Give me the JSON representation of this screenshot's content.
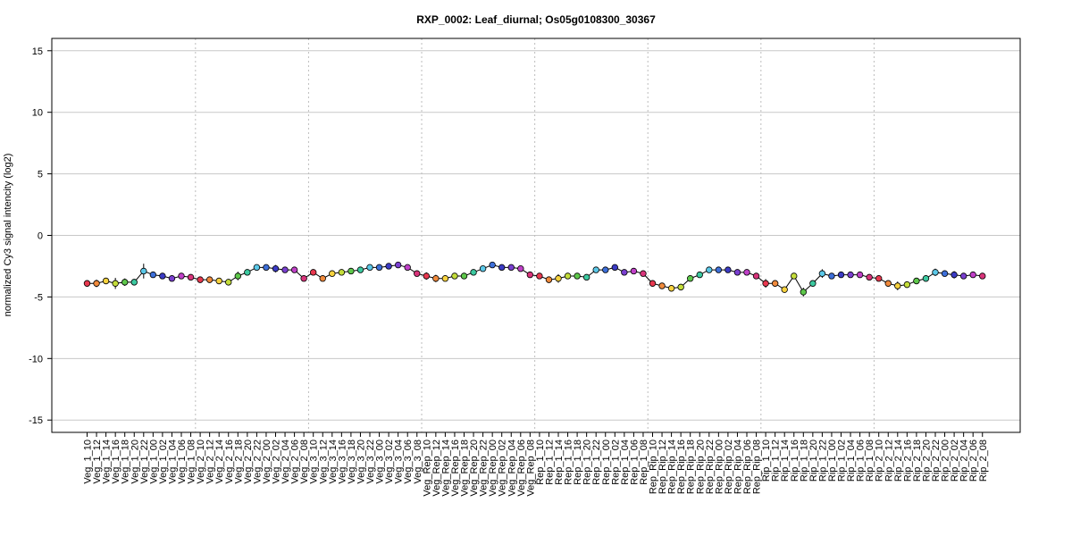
{
  "chart_data": {
    "type": "line",
    "title": "RXP_0002: Leaf_diurnal; Os05g0108300_30367",
    "xlabel": "",
    "ylabel": "normalized Cy3 signal intencity (log2)",
    "ylim": [
      -16,
      16
    ],
    "yticks": [
      -15,
      -10,
      -5,
      0,
      5,
      10,
      15
    ],
    "grid": true,
    "legend": "none",
    "categories": [
      "Veg_1_10",
      "Veg_1_12",
      "Veg_1_14",
      "Veg_1_16",
      "Veg_1_18",
      "Veg_1_20",
      "Veg_1_22",
      "Veg_1_00",
      "Veg_1_02",
      "Veg_1_04",
      "Veg_1_06",
      "Veg_1_08",
      "Veg_2_10",
      "Veg_2_12",
      "Veg_2_14",
      "Veg_2_16",
      "Veg_2_18",
      "Veg_2_20",
      "Veg_2_22",
      "Veg_2_00",
      "Veg_2_02",
      "Veg_2_04",
      "Veg_2_06",
      "Veg_2_08",
      "Veg_3_10",
      "Veg_3_12",
      "Veg_3_14",
      "Veg_3_16",
      "Veg_3_18",
      "Veg_3_20",
      "Veg_3_22",
      "Veg_3_00",
      "Veg_3_02",
      "Veg_3_04",
      "Veg_3_06",
      "Veg_3_08",
      "Veg_Rep_10",
      "Veg_Rep_12",
      "Veg_Rep_14",
      "Veg_Rep_16",
      "Veg_Rep_18",
      "Veg_Rep_20",
      "Veg_Rep_22",
      "Veg_Rep_00",
      "Veg_Rep_02",
      "Veg_Rep_04",
      "Veg_Rep_06",
      "Veg_Rep_08",
      "Rep_1_10",
      "Rep_1_12",
      "Rep_1_14",
      "Rep_1_16",
      "Rep_1_18",
      "Rep_1_20",
      "Rep_1_22",
      "Rep_1_00",
      "Rep_1_02",
      "Rep_1_04",
      "Rep_1_06",
      "Rep_1_08",
      "Rep_Rip_10",
      "Rep_Rip_12",
      "Rep_Rip_14",
      "Rep_Rip_16",
      "Rep_Rip_18",
      "Rep_Rip_20",
      "Rep_Rip_22",
      "Rep_Rip_00",
      "Rep_Rip_02",
      "Rep_Rip_04",
      "Rep_Rip_06",
      "Rep_Rip_08",
      "Rip_1_10",
      "Rip_1_12",
      "Rip_1_14",
      "Rip_1_16",
      "Rip_1_18",
      "Rip_1_20",
      "Rip_1_22",
      "Rip_1_00",
      "Rip_1_02",
      "Rip_1_04",
      "Rip_1_06",
      "Rip_1_08",
      "Rip_2_10",
      "Rip_2_12",
      "Rip_2_14",
      "Rip_2_16",
      "Rip_2_18",
      "Rip_2_20",
      "Rip_2_22",
      "Rip_2_00",
      "Rip_2_02",
      "Rip_2_04",
      "Rip_2_06",
      "Rip_2_08"
    ],
    "values": [
      -3.9,
      -3.9,
      -3.7,
      -3.9,
      -3.8,
      -3.8,
      -2.9,
      -3.2,
      -3.3,
      -3.5,
      -3.3,
      -3.4,
      -3.6,
      -3.6,
      -3.7,
      -3.8,
      -3.3,
      -3.0,
      -2.6,
      -2.6,
      -2.7,
      -2.8,
      -2.8,
      -3.5,
      -3.0,
      -3.5,
      -3.1,
      -3.0,
      -2.9,
      -2.8,
      -2.6,
      -2.6,
      -2.5,
      -2.4,
      -2.6,
      -3.1,
      -3.3,
      -3.5,
      -3.5,
      -3.3,
      -3.3,
      -3.0,
      -2.7,
      -2.4,
      -2.6,
      -2.6,
      -2.7,
      -3.2,
      -3.3,
      -3.6,
      -3.5,
      -3.3,
      -3.3,
      -3.4,
      -2.8,
      -2.8,
      -2.6,
      -3.0,
      -2.9,
      -3.1,
      -3.9,
      -4.1,
      -4.3,
      -4.2,
      -3.5,
      -3.2,
      -2.8,
      -2.8,
      -2.8,
      -3.0,
      -3.0,
      -3.3,
      -3.9,
      -3.9,
      -4.4,
      -3.3,
      -4.6,
      -3.9,
      -3.1,
      -3.3,
      -3.2,
      -3.2,
      -3.2,
      -3.4,
      -3.5,
      -3.9,
      -4.1,
      -4.0,
      -3.7,
      -3.5,
      -3.0,
      -3.1,
      -3.2,
      -3.3,
      -3.2,
      -3.3
    ],
    "errors": [
      0.2,
      0.3,
      0.15,
      0.45,
      0.3,
      0.25,
      0.6,
      0.1,
      0.15,
      0.15,
      0.15,
      0.15,
      0.2,
      0.2,
      0.15,
      0.15,
      0.35,
      0.1,
      0.15,
      0.15,
      0.3,
      0.15,
      0.2,
      0.15,
      0.2,
      0.15,
      0.15,
      0.1,
      0.15,
      0.15,
      0.1,
      0.1,
      0.15,
      0.15,
      0.1,
      0.2,
      0.3,
      0.3,
      0.2,
      0.15,
      0.2,
      0.15,
      0.15,
      0.1,
      0.15,
      0.15,
      0.15,
      0.15,
      0.15,
      0.15,
      0.35,
      0.15,
      0.15,
      0.15,
      0.15,
      0.15,
      0.15,
      0.2,
      0.15,
      0.15,
      0.2,
      0.2,
      0.15,
      0.15,
      0.15,
      0.15,
      0.1,
      0.15,
      0.15,
      0.15,
      0.15,
      0.15,
      0.35,
      0.2,
      0.15,
      0.15,
      0.35,
      0.15,
      0.35,
      0.15,
      0.15,
      0.15,
      0.15,
      0.15,
      0.15,
      0.2,
      0.35,
      0.15,
      0.15,
      0.25,
      0.3,
      0.15,
      0.3,
      0.15,
      0.15,
      0.15
    ],
    "hour_colors": {
      "10": "#e8384f",
      "12": "#f08a3c",
      "14": "#f7d23e",
      "16": "#c4dd3a",
      "18": "#5ec84b",
      "20": "#3cc9a0",
      "22": "#5bc8e8",
      "00": "#3d6fd9",
      "02": "#3b3bc4",
      "04": "#7a3fd0",
      "06": "#c040c8",
      "08": "#d8347a"
    },
    "separators_after_index": [
      11,
      23,
      35,
      47,
      59,
      71,
      83
    ]
  }
}
